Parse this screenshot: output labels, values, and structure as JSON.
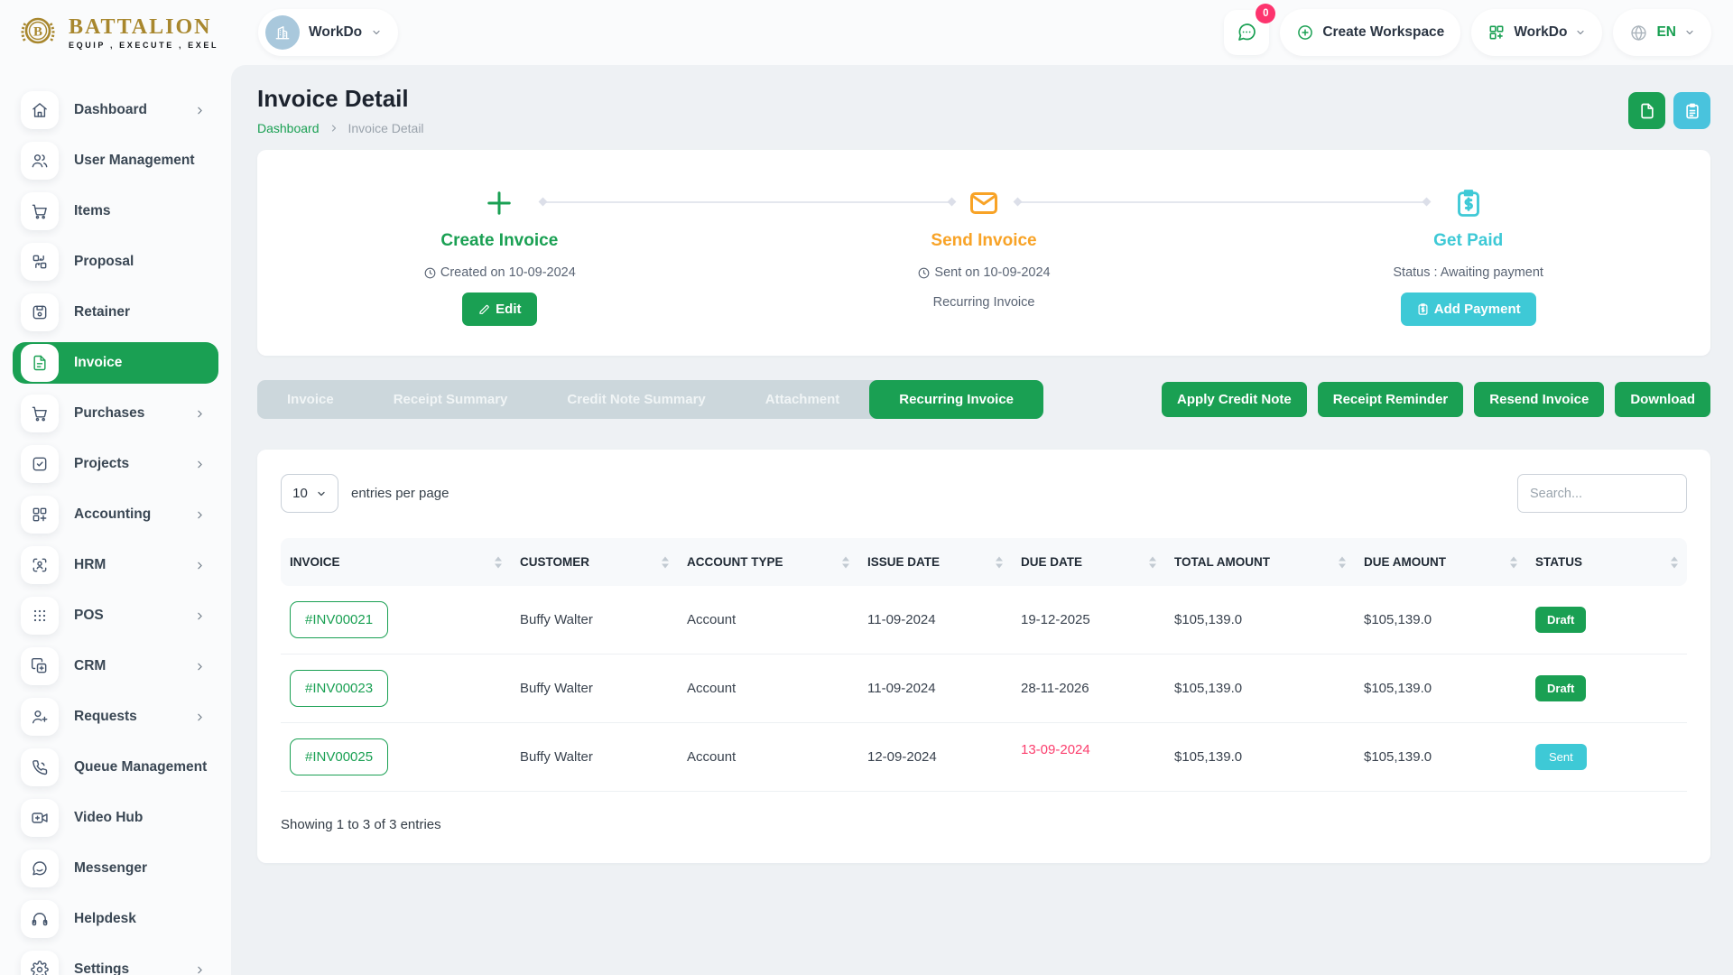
{
  "brand": {
    "name": "BATTALION",
    "tagline": "EQUIP , EXECUTE , EXEL"
  },
  "topbar": {
    "workspace_switcher_label": "WorkDo",
    "messages_badge": "0",
    "create_workspace_label": "Create Workspace",
    "app_menu_label": "WorkDo",
    "language_label": "EN"
  },
  "sidebar": {
    "items": [
      {
        "label": "Dashboard",
        "icon": "home",
        "chevron": true,
        "active": false
      },
      {
        "label": "User Management",
        "icon": "users",
        "chevron": true,
        "active": false
      },
      {
        "label": "Items",
        "icon": "cart",
        "chevron": false,
        "active": false
      },
      {
        "label": "Proposal",
        "icon": "proposal",
        "chevron": false,
        "active": false
      },
      {
        "label": "Retainer",
        "icon": "retainer",
        "chevron": false,
        "active": false
      },
      {
        "label": "Invoice",
        "icon": "invoice",
        "chevron": false,
        "active": true
      },
      {
        "label": "Purchases",
        "icon": "cart",
        "chevron": true,
        "active": false
      },
      {
        "label": "Projects",
        "icon": "projects",
        "chevron": true,
        "active": false
      },
      {
        "label": "Accounting",
        "icon": "accounting",
        "chevron": true,
        "active": false
      },
      {
        "label": "HRM",
        "icon": "hrm",
        "chevron": true,
        "active": false
      },
      {
        "label": "POS",
        "icon": "pos",
        "chevron": true,
        "active": false
      },
      {
        "label": "CRM",
        "icon": "crm",
        "chevron": true,
        "active": false
      },
      {
        "label": "Requests",
        "icon": "requests",
        "chevron": true,
        "active": false
      },
      {
        "label": "Queue Management",
        "icon": "queue",
        "chevron": true,
        "active": false
      },
      {
        "label": "Video Hub",
        "icon": "video",
        "chevron": false,
        "active": false
      },
      {
        "label": "Messenger",
        "icon": "messenger",
        "chevron": false,
        "active": false
      },
      {
        "label": "Helpdesk",
        "icon": "helpdesk",
        "chevron": false,
        "active": false
      },
      {
        "label": "Settings",
        "icon": "settings",
        "chevron": true,
        "active": false
      }
    ]
  },
  "page": {
    "title": "Invoice Detail",
    "breadcrumb": [
      "Dashboard",
      "Invoice Detail"
    ]
  },
  "workflow": {
    "steps": [
      {
        "title": "Create Invoice",
        "meta": "Created on 10-09-2024",
        "button_label": "Edit"
      },
      {
        "title": "Send Invoice",
        "meta": "Sent on 10-09-2024",
        "note": "Recurring Invoice"
      },
      {
        "title": "Get Paid",
        "meta": "Status : Awaiting payment",
        "button_label": "Add Payment"
      }
    ]
  },
  "tabs": [
    {
      "label": "Invoice",
      "active": false
    },
    {
      "label": "Receipt Summary",
      "active": false
    },
    {
      "label": "Credit Note Summary",
      "active": false
    },
    {
      "label": "Attachment",
      "active": false
    },
    {
      "label": "Recurring Invoice",
      "active": true
    }
  ],
  "actions": [
    "Apply Credit Note",
    "Receipt Reminder",
    "Resend Invoice",
    "Download"
  ],
  "table": {
    "page_size": "10",
    "entries_label": "entries per page",
    "search_placeholder": "Search...",
    "columns": [
      "INVOICE",
      "CUSTOMER",
      "ACCOUNT TYPE",
      "ISSUE DATE",
      "DUE DATE",
      "TOTAL AMOUNT",
      "DUE AMOUNT",
      "STATUS"
    ],
    "rows": [
      {
        "invoice": "#INV00021",
        "customer": "Buffy Walter",
        "account_type": "Account",
        "issue_date": "11-09-2024",
        "due_date": "19-12-2025",
        "due_overdue": false,
        "total_amount": "$105,139.0",
        "due_amount": "$105,139.0",
        "status": "Draft",
        "status_type": "draft"
      },
      {
        "invoice": "#INV00023",
        "customer": "Buffy Walter",
        "account_type": "Account",
        "issue_date": "11-09-2024",
        "due_date": "28-11-2026",
        "due_overdue": false,
        "total_amount": "$105,139.0",
        "due_amount": "$105,139.0",
        "status": "Draft",
        "status_type": "draft"
      },
      {
        "invoice": "#INV00025",
        "customer": "Buffy Walter",
        "account_type": "Account",
        "issue_date": "12-09-2024",
        "due_date": "13-09-2024",
        "due_overdue": true,
        "total_amount": "$105,139.0",
        "due_amount": "$105,139.0",
        "status": "Sent",
        "status_type": "sent"
      }
    ],
    "summary": "Showing 1 to 3 of 3 entries"
  },
  "colors": {
    "primary_green": "#1aa053",
    "teal": "#3ec9d6",
    "orange": "#f8a327",
    "danger_pink": "#fb3e6d"
  }
}
